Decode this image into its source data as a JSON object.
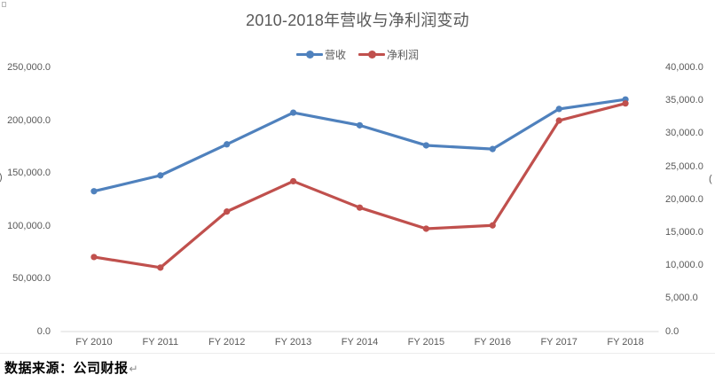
{
  "document": {
    "source_note": "数据来源：公司财报",
    "return_mark": "↵"
  },
  "chart_data": {
    "type": "line",
    "title": "2010-2018年营收与净利润变动",
    "categories": [
      "FY 2010",
      "FY 2011",
      "FY 2012",
      "FY 2013",
      "FY 2014",
      "FY 2015",
      "FY 2016",
      "FY 2017",
      "FY 2018"
    ],
    "series": [
      {
        "name": "营收",
        "axis": "left",
        "color": "#4F81BD",
        "marker": "circle",
        "values": [
          133000,
          148000,
          177500,
          207500,
          195500,
          176500,
          173000,
          211000,
          220000
        ]
      },
      {
        "name": "净利润",
        "axis": "right",
        "color": "#C0504D",
        "marker": "circle",
        "values": [
          11300,
          9700,
          18200,
          22800,
          18800,
          15600,
          16100,
          32000,
          34600
        ]
      }
    ],
    "left_axis": {
      "min": 0,
      "max": 250000,
      "ticks": [
        "0.0",
        "50,000.0",
        "100,000.0",
        "150,000.0",
        "200,000.0",
        "250,000.0"
      ],
      "title_fragment": ")"
    },
    "right_axis": {
      "min": 0,
      "max": 40000,
      "ticks": [
        "0.0",
        "5,000.0",
        "10,000.0",
        "15,000.0",
        "20,000.0",
        "25,000.0",
        "30,000.0",
        "35,000.0",
        "40,000.0"
      ],
      "title_fragment": "("
    },
    "x_axis": {
      "line_color": "#D9D9D9"
    },
    "grid": false,
    "legend_position": "top",
    "text_color": "#595959"
  }
}
